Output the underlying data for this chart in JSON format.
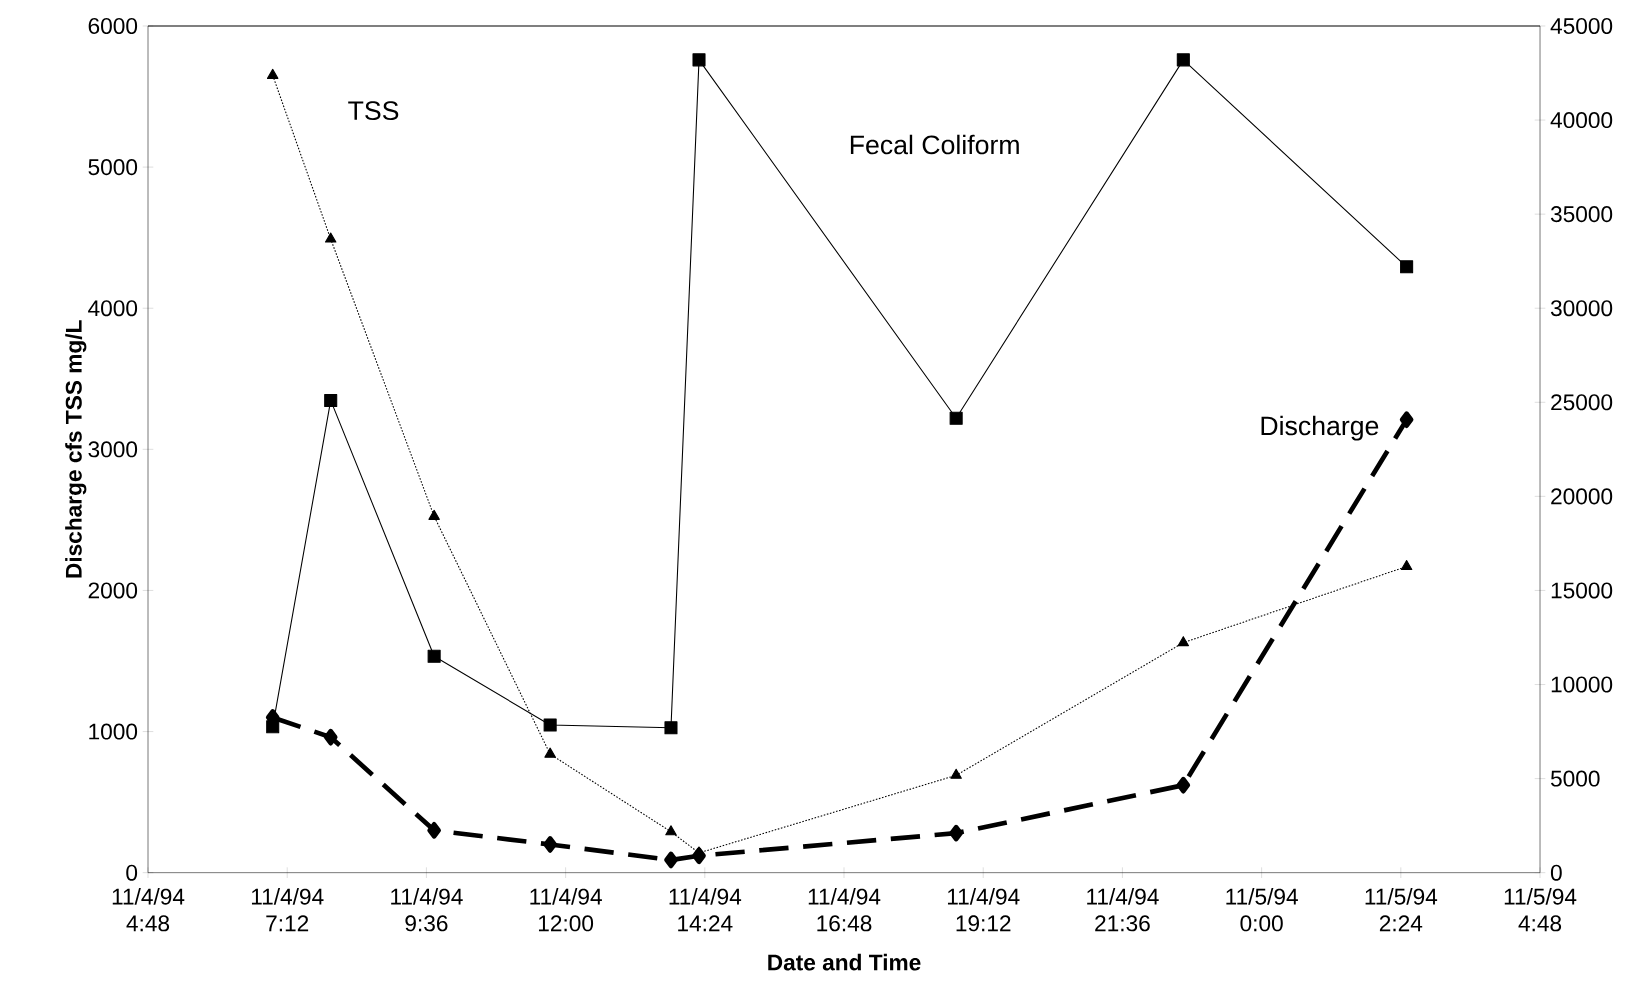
{
  "chart_data": {
    "type": "line",
    "xlabel": "Date and Time",
    "ylabel": "Discharge cfs TSS mg/L",
    "x": [
      "1994-11-04T06:57",
      "1994-11-04T07:57",
      "1994-11-04T09:44",
      "1994-11-04T11:44",
      "1994-11-04T13:49",
      "1994-11-04T14:18",
      "1994-11-04T18:44",
      "1994-11-04T22:39",
      "1994-11-05T02:30"
    ],
    "series": [
      {
        "name": "TSS",
        "color": "#000000",
        "marker": "triangle",
        "line_style": "dotted",
        "values": [
          5650,
          4490,
          2525,
          840,
          290,
          140,
          690,
          1630,
          2170
        ]
      },
      {
        "name": "Fecal Coliform",
        "color": "#000000",
        "marker": "square",
        "line_style": "solid",
        "axis": "y2",
        "values": [
          7760,
          25100,
          11500,
          7850,
          7700,
          43200,
          24150,
          43200,
          32200
        ]
      },
      {
        "name": "Discharge",
        "color": "#000000",
        "marker": "diamond",
        "line_style": "dashed",
        "values": [
          1100,
          960,
          300,
          200,
          90,
          120,
          280,
          620,
          3210
        ]
      }
    ],
    "xlim": [
      "1994-11-04T04:48",
      "1994-11-05T04:48"
    ],
    "xticks": [
      {
        "value": "1994-11-04T04:48",
        "label": "11/4/94 4:48"
      },
      {
        "value": "1994-11-04T07:12",
        "label": "11/4/94 7:12"
      },
      {
        "value": "1994-11-04T09:36",
        "label": "11/4/94 9:36"
      },
      {
        "value": "1994-11-04T12:00",
        "label": "11/4/94 12:00"
      },
      {
        "value": "1994-11-04T14:24",
        "label": "11/4/94 14:24"
      },
      {
        "value": "1994-11-04T16:48",
        "label": "11/4/94 16:48"
      },
      {
        "value": "1994-11-04T19:12",
        "label": "11/4/94 19:12"
      },
      {
        "value": "1994-11-04T21:36",
        "label": "11/4/94 21:36"
      },
      {
        "value": "1994-11-05T00:00",
        "label": "11/5/94 0:00"
      },
      {
        "value": "1994-11-05T02:24",
        "label": "11/5/94 2:24"
      },
      {
        "value": "1994-11-05T04:48",
        "label": "11/5/94 4:48"
      }
    ],
    "ylim": [
      0,
      6000
    ],
    "yticks": [
      0,
      1000,
      2000,
      3000,
      4000,
      5000,
      6000
    ],
    "y2lim": [
      0,
      45000
    ],
    "y2ticks": [
      0,
      5000,
      10000,
      15000,
      20000,
      25000,
      30000,
      35000,
      40000,
      45000
    ]
  }
}
